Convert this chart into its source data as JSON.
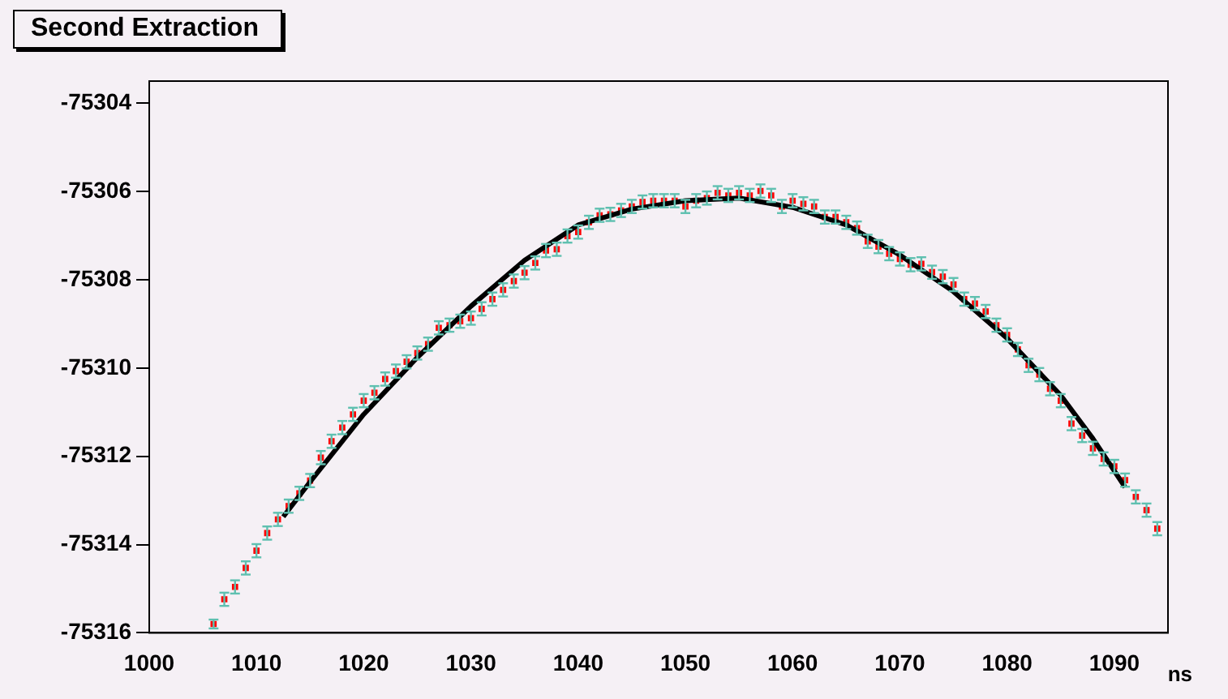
{
  "chart_data": {
    "type": "scatter",
    "title": "Second Extraction",
    "xlabel": "ns",
    "xlim": [
      1000,
      1095
    ],
    "xticks": [
      1000,
      1010,
      1020,
      1030,
      1040,
      1050,
      1060,
      1070,
      1080,
      1090
    ],
    "ylim": [
      -75316,
      -75303.5
    ],
    "yticks": [
      -75316,
      -75314,
      -75312,
      -75310,
      -75308,
      -75306,
      -75304
    ],
    "grid": false,
    "legend": false,
    "marker": "square",
    "series": [
      {
        "color": "#ff0000",
        "x": [
          1006,
          1007,
          1008,
          1009,
          1010,
          1011,
          1012,
          1013,
          1014,
          1015,
          1016,
          1017,
          1018,
          1019,
          1020,
          1021,
          1022,
          1023,
          1024,
          1025,
          1026,
          1027,
          1028,
          1029,
          1030,
          1031,
          1032,
          1033,
          1034,
          1035,
          1036,
          1037,
          1038,
          1039,
          1040,
          1041,
          1042,
          1043,
          1044,
          1045,
          1046,
          1047,
          1048,
          1049,
          1050,
          1051,
          1052,
          1053,
          1054,
          1055,
          1056,
          1057,
          1058,
          1059,
          1060,
          1061,
          1062,
          1063,
          1064,
          1065,
          1066,
          1067,
          1068,
          1069,
          1070,
          1071,
          1072,
          1073,
          1074,
          1075,
          1076,
          1077,
          1078,
          1079,
          1080,
          1081,
          1082,
          1083,
          1084,
          1085,
          1086,
          1087,
          1088,
          1089,
          1090,
          1091,
          1092,
          1093,
          1094
        ],
        "values": [
          -75315.8,
          -75315.24,
          -75314.96,
          -75314.53,
          -75314.14,
          -75313.74,
          -75313.43,
          -75313.13,
          -75312.84,
          -75312.55,
          -75312.03,
          -75311.66,
          -75311.35,
          -75311.05,
          -75310.74,
          -75310.56,
          -75310.25,
          -75310.07,
          -75309.86,
          -75309.66,
          -75309.46,
          -75309.09,
          -75309.03,
          -75308.94,
          -75308.87,
          -75308.66,
          -75308.44,
          -75308.23,
          -75308.03,
          -75307.84,
          -75307.62,
          -75307.34,
          -75307.31,
          -75307.01,
          -75306.92,
          -75306.7,
          -75306.54,
          -75306.52,
          -75306.43,
          -75306.34,
          -75306.24,
          -75306.21,
          -75306.21,
          -75306.21,
          -75306.34,
          -75306.21,
          -75306.15,
          -75306.03,
          -75306.09,
          -75306.03,
          -75306.09,
          -75305.99,
          -75306.09,
          -75306.34,
          -75306.21,
          -75306.28,
          -75306.34,
          -75306.58,
          -75306.58,
          -75306.7,
          -75306.83,
          -75307.13,
          -75307.25,
          -75307.41,
          -75307.53,
          -75307.66,
          -75307.64,
          -75307.83,
          -75307.93,
          -75308.11,
          -75308.44,
          -75308.54,
          -75308.72,
          -75309.03,
          -75309.25,
          -75309.58,
          -75309.94,
          -75310.15,
          -75310.47,
          -75310.74,
          -75311.26,
          -75311.53,
          -75311.82,
          -75312.06,
          -75312.23,
          -75312.54,
          -75312.92,
          -75313.22,
          -75313.64
        ],
        "errors": [
          0.1,
          0.15,
          0.15,
          0.15,
          0.15,
          0.15,
          0.15,
          0.15,
          0.15,
          0.15,
          0.15,
          0.15,
          0.15,
          0.15,
          0.15,
          0.15,
          0.15,
          0.15,
          0.15,
          0.15,
          0.15,
          0.15,
          0.15,
          0.15,
          0.15,
          0.15,
          0.15,
          0.15,
          0.15,
          0.15,
          0.15,
          0.15,
          0.15,
          0.15,
          0.15,
          0.15,
          0.15,
          0.15,
          0.15,
          0.15,
          0.15,
          0.15,
          0.15,
          0.15,
          0.15,
          0.15,
          0.15,
          0.15,
          0.15,
          0.15,
          0.15,
          0.15,
          0.15,
          0.15,
          0.15,
          0.15,
          0.15,
          0.15,
          0.15,
          0.15,
          0.15,
          0.15,
          0.15,
          0.15,
          0.15,
          0.15,
          0.15,
          0.15,
          0.15,
          0.15,
          0.15,
          0.15,
          0.15,
          0.15,
          0.15,
          0.15,
          0.15,
          0.15,
          0.15,
          0.15,
          0.15,
          0.15,
          0.15,
          0.15,
          0.15,
          0.15,
          0.15,
          0.15,
          0.15
        ]
      },
      {
        "type": "line",
        "color": "#000000",
        "marker": "none",
        "line_style": "solid",
        "x": [
          1012.5,
          1015,
          1020,
          1025,
          1030,
          1035,
          1040,
          1045,
          1050,
          1055,
          1060,
          1065,
          1070,
          1075,
          1080,
          1085,
          1088,
          1091
        ],
        "values": [
          -75313.37,
          -75312.58,
          -75311.05,
          -75309.76,
          -75308.6,
          -75307.56,
          -75306.76,
          -75306.4,
          -75306.21,
          -75306.15,
          -75306.36,
          -75306.76,
          -75307.44,
          -75308.27,
          -75309.33,
          -75310.62,
          -75311.6,
          -75312.7
        ]
      }
    ]
  }
}
